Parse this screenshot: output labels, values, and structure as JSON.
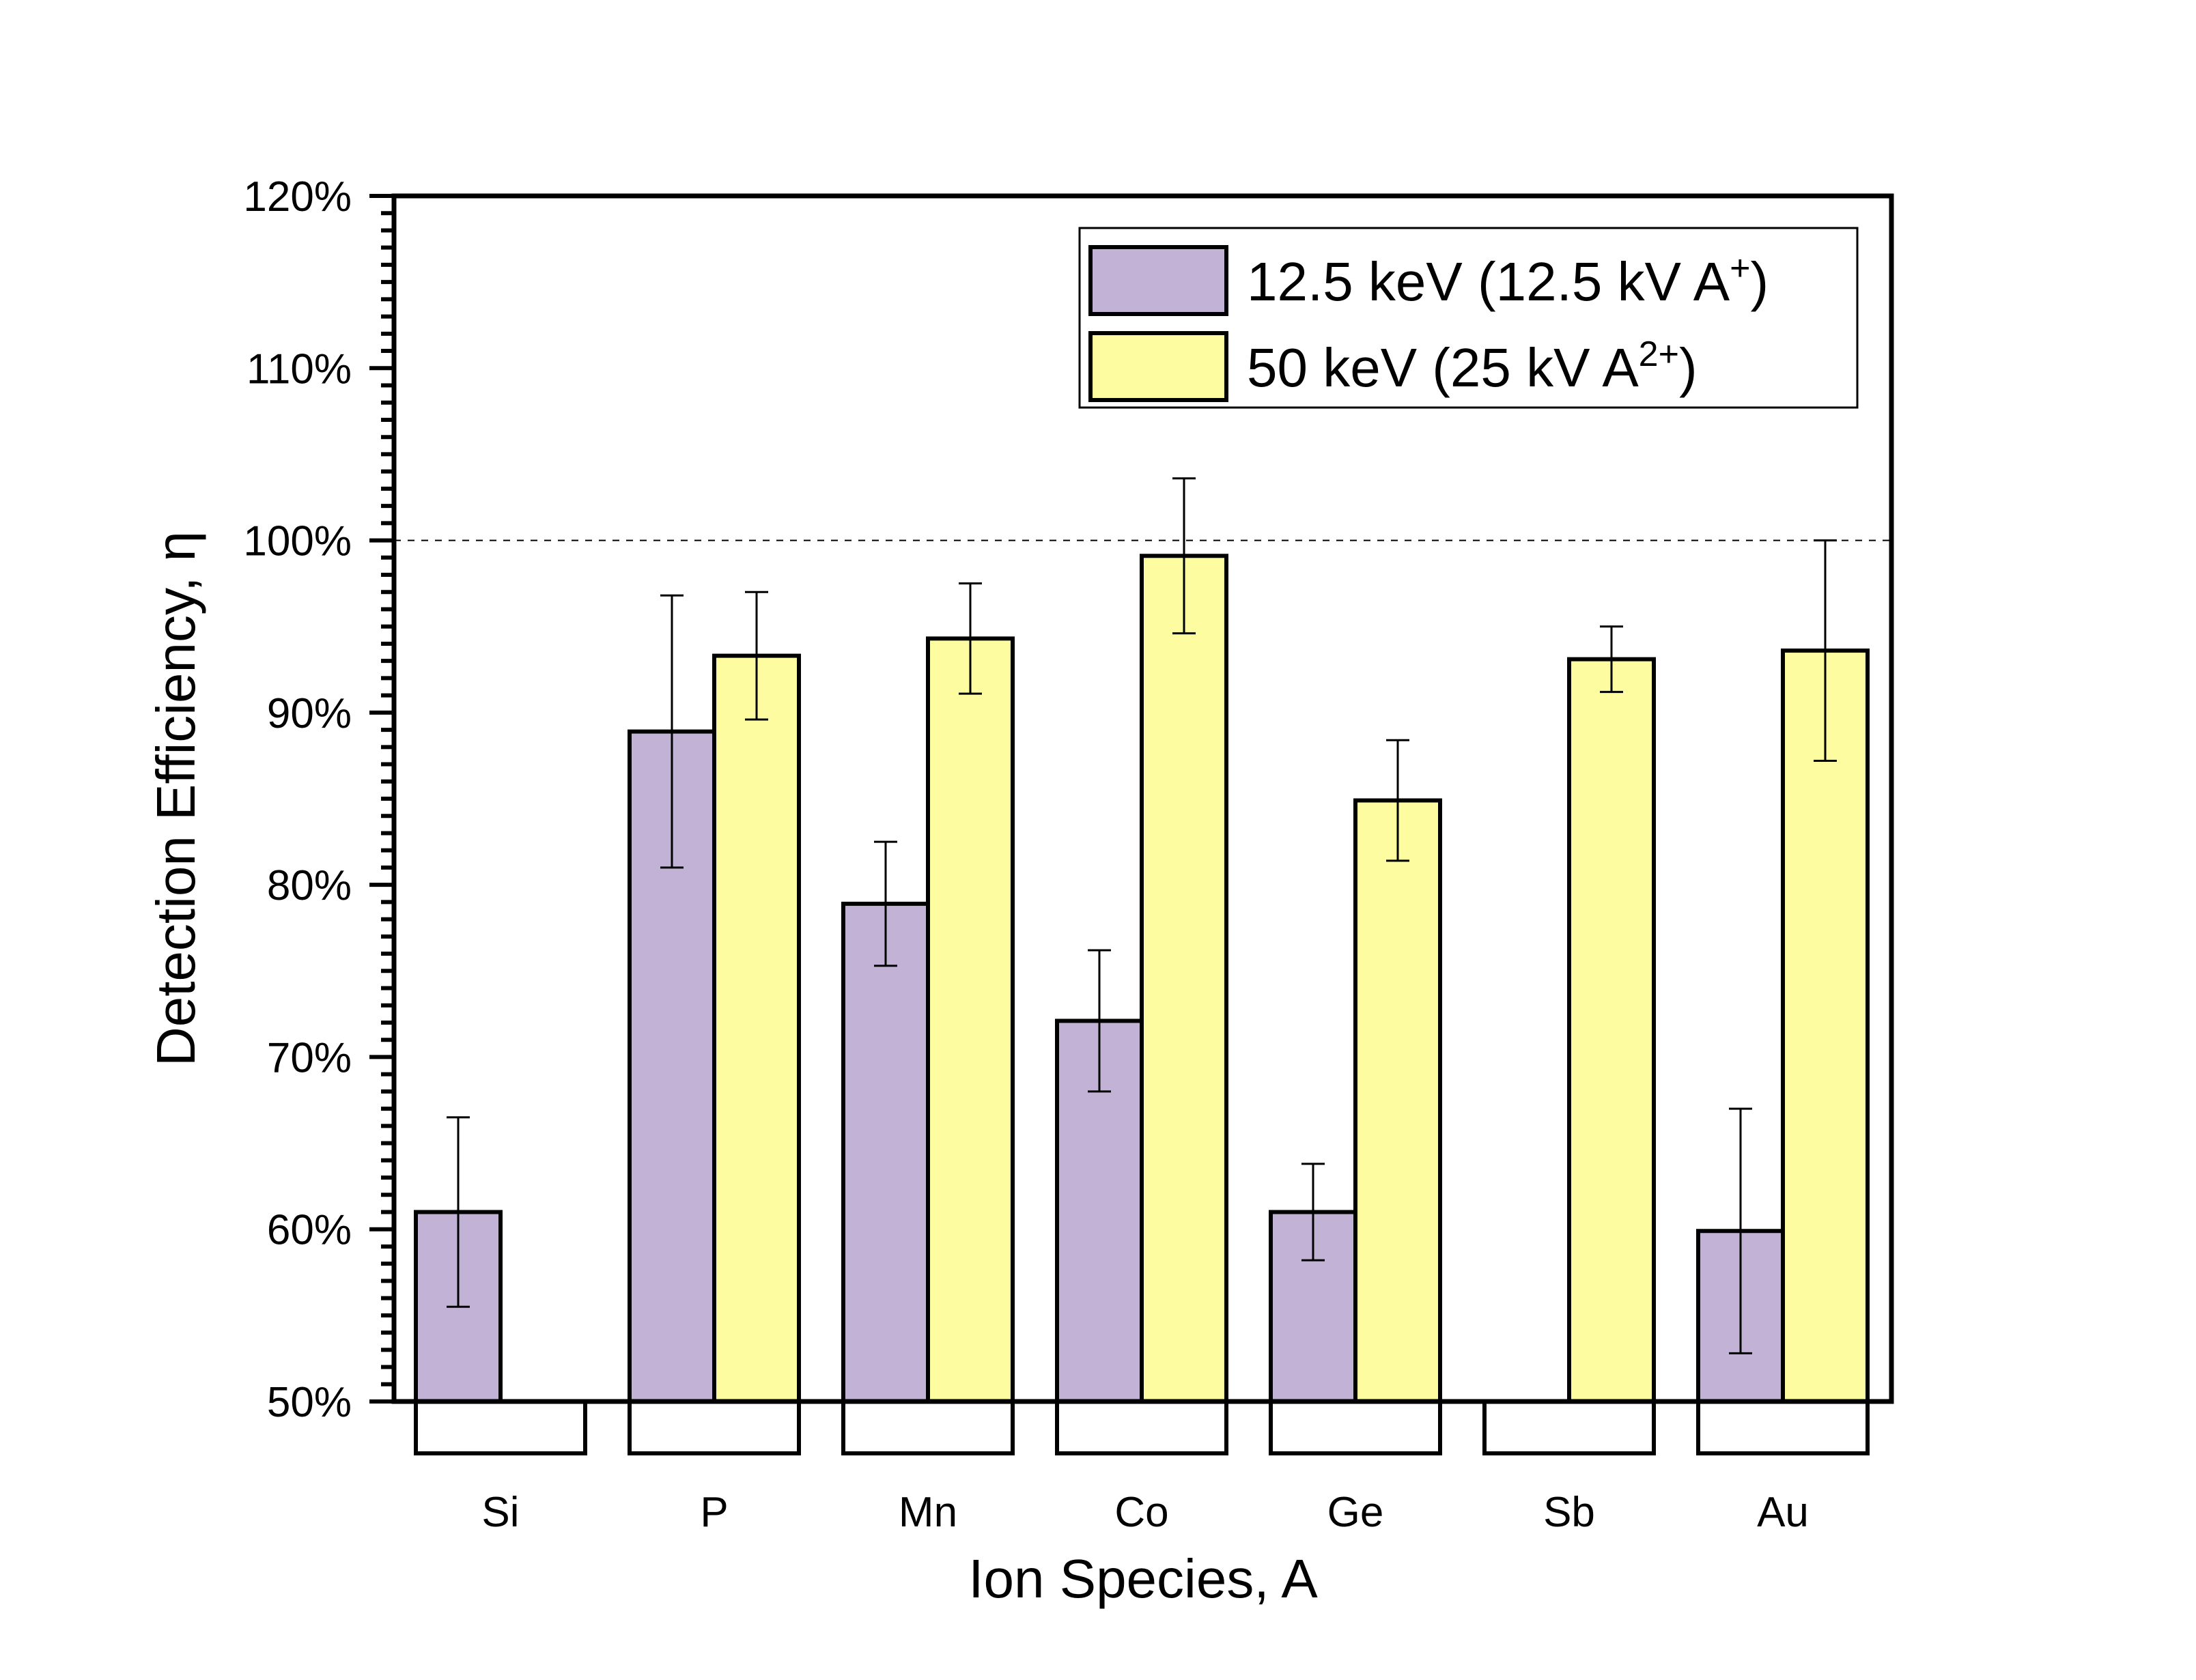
{
  "chart_data": {
    "type": "bar",
    "title": "",
    "xlabel": "Ion Species, A",
    "ylabel": "Detection Efficiency, η",
    "ylim": [
      50,
      120
    ],
    "y_unit": "%",
    "y_major_ticks": [
      50,
      60,
      70,
      80,
      90,
      100,
      110,
      120
    ],
    "y_tick_labels": [
      "50%",
      "60%",
      "70%",
      "80%",
      "90%",
      "100%",
      "110%",
      "120%"
    ],
    "y_minor_step": 1,
    "reference_line": {
      "value": 100,
      "style": "dashed"
    },
    "categories": [
      "Si",
      "P",
      "Mn",
      "Co",
      "Ge",
      "Sb",
      "Au"
    ],
    "legend_position": "top-right",
    "series": [
      {
        "name": "12.5 keV (12.5 kV A+)",
        "name_main": "12.5 keV (12.5 kV A",
        "name_sup": "+",
        "name_end": ")",
        "color": "#c2b3d6",
        "values": [
          61.0,
          88.9,
          78.9,
          72.1,
          61.0,
          null,
          59.9
        ],
        "errors": [
          5.5,
          7.9,
          3.6,
          4.1,
          2.8,
          null,
          7.1
        ]
      },
      {
        "name": "50 keV (25 kV A2+)",
        "name_main": "50 keV (25 kV A",
        "name_sup": "2+",
        "name_end": ")",
        "color": "#fdfca0",
        "values": [
          null,
          93.3,
          94.3,
          99.1,
          84.9,
          93.1,
          93.6
        ],
        "errors": [
          null,
          3.7,
          3.2,
          4.5,
          3.5,
          1.9,
          6.4
        ]
      }
    ]
  }
}
